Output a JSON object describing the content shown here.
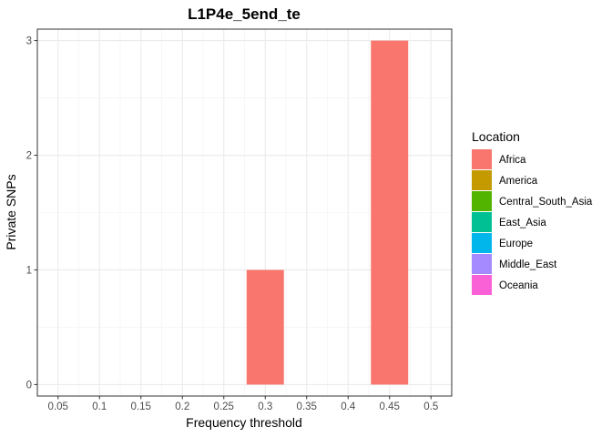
{
  "chart_data": {
    "type": "bar",
    "title": "L1P4e_5end_te",
    "xlabel": "Frequency threshold",
    "ylabel": "Private SNPs",
    "x_ticks": [
      "0.05",
      "0.1",
      "0.15",
      "0.2",
      "0.25",
      "0.3",
      "0.35",
      "0.4",
      "0.45",
      "0.5"
    ],
    "y_ticks": [
      "0",
      "1",
      "2",
      "3"
    ],
    "xlim": [
      0.025,
      0.525
    ],
    "ylim": [
      -0.1,
      3.1
    ],
    "bar_width": 0.045,
    "grid": true,
    "legend": {
      "title": "Location",
      "position": "right",
      "entries": [
        {
          "name": "Africa",
          "color": "#F8766D"
        },
        {
          "name": "America",
          "color": "#C49A00"
        },
        {
          "name": "Central_South_Asia",
          "color": "#53B400"
        },
        {
          "name": "East_Asia",
          "color": "#00C094"
        },
        {
          "name": "Europe",
          "color": "#00B6EB"
        },
        {
          "name": "Middle_East",
          "color": "#A58AFF"
        },
        {
          "name": "Oceania",
          "color": "#FB61D7"
        }
      ]
    },
    "series": [
      {
        "name": "Africa",
        "color": "#F8766D",
        "x": [
          0.3,
          0.45
        ],
        "values": [
          1,
          3
        ]
      }
    ]
  }
}
